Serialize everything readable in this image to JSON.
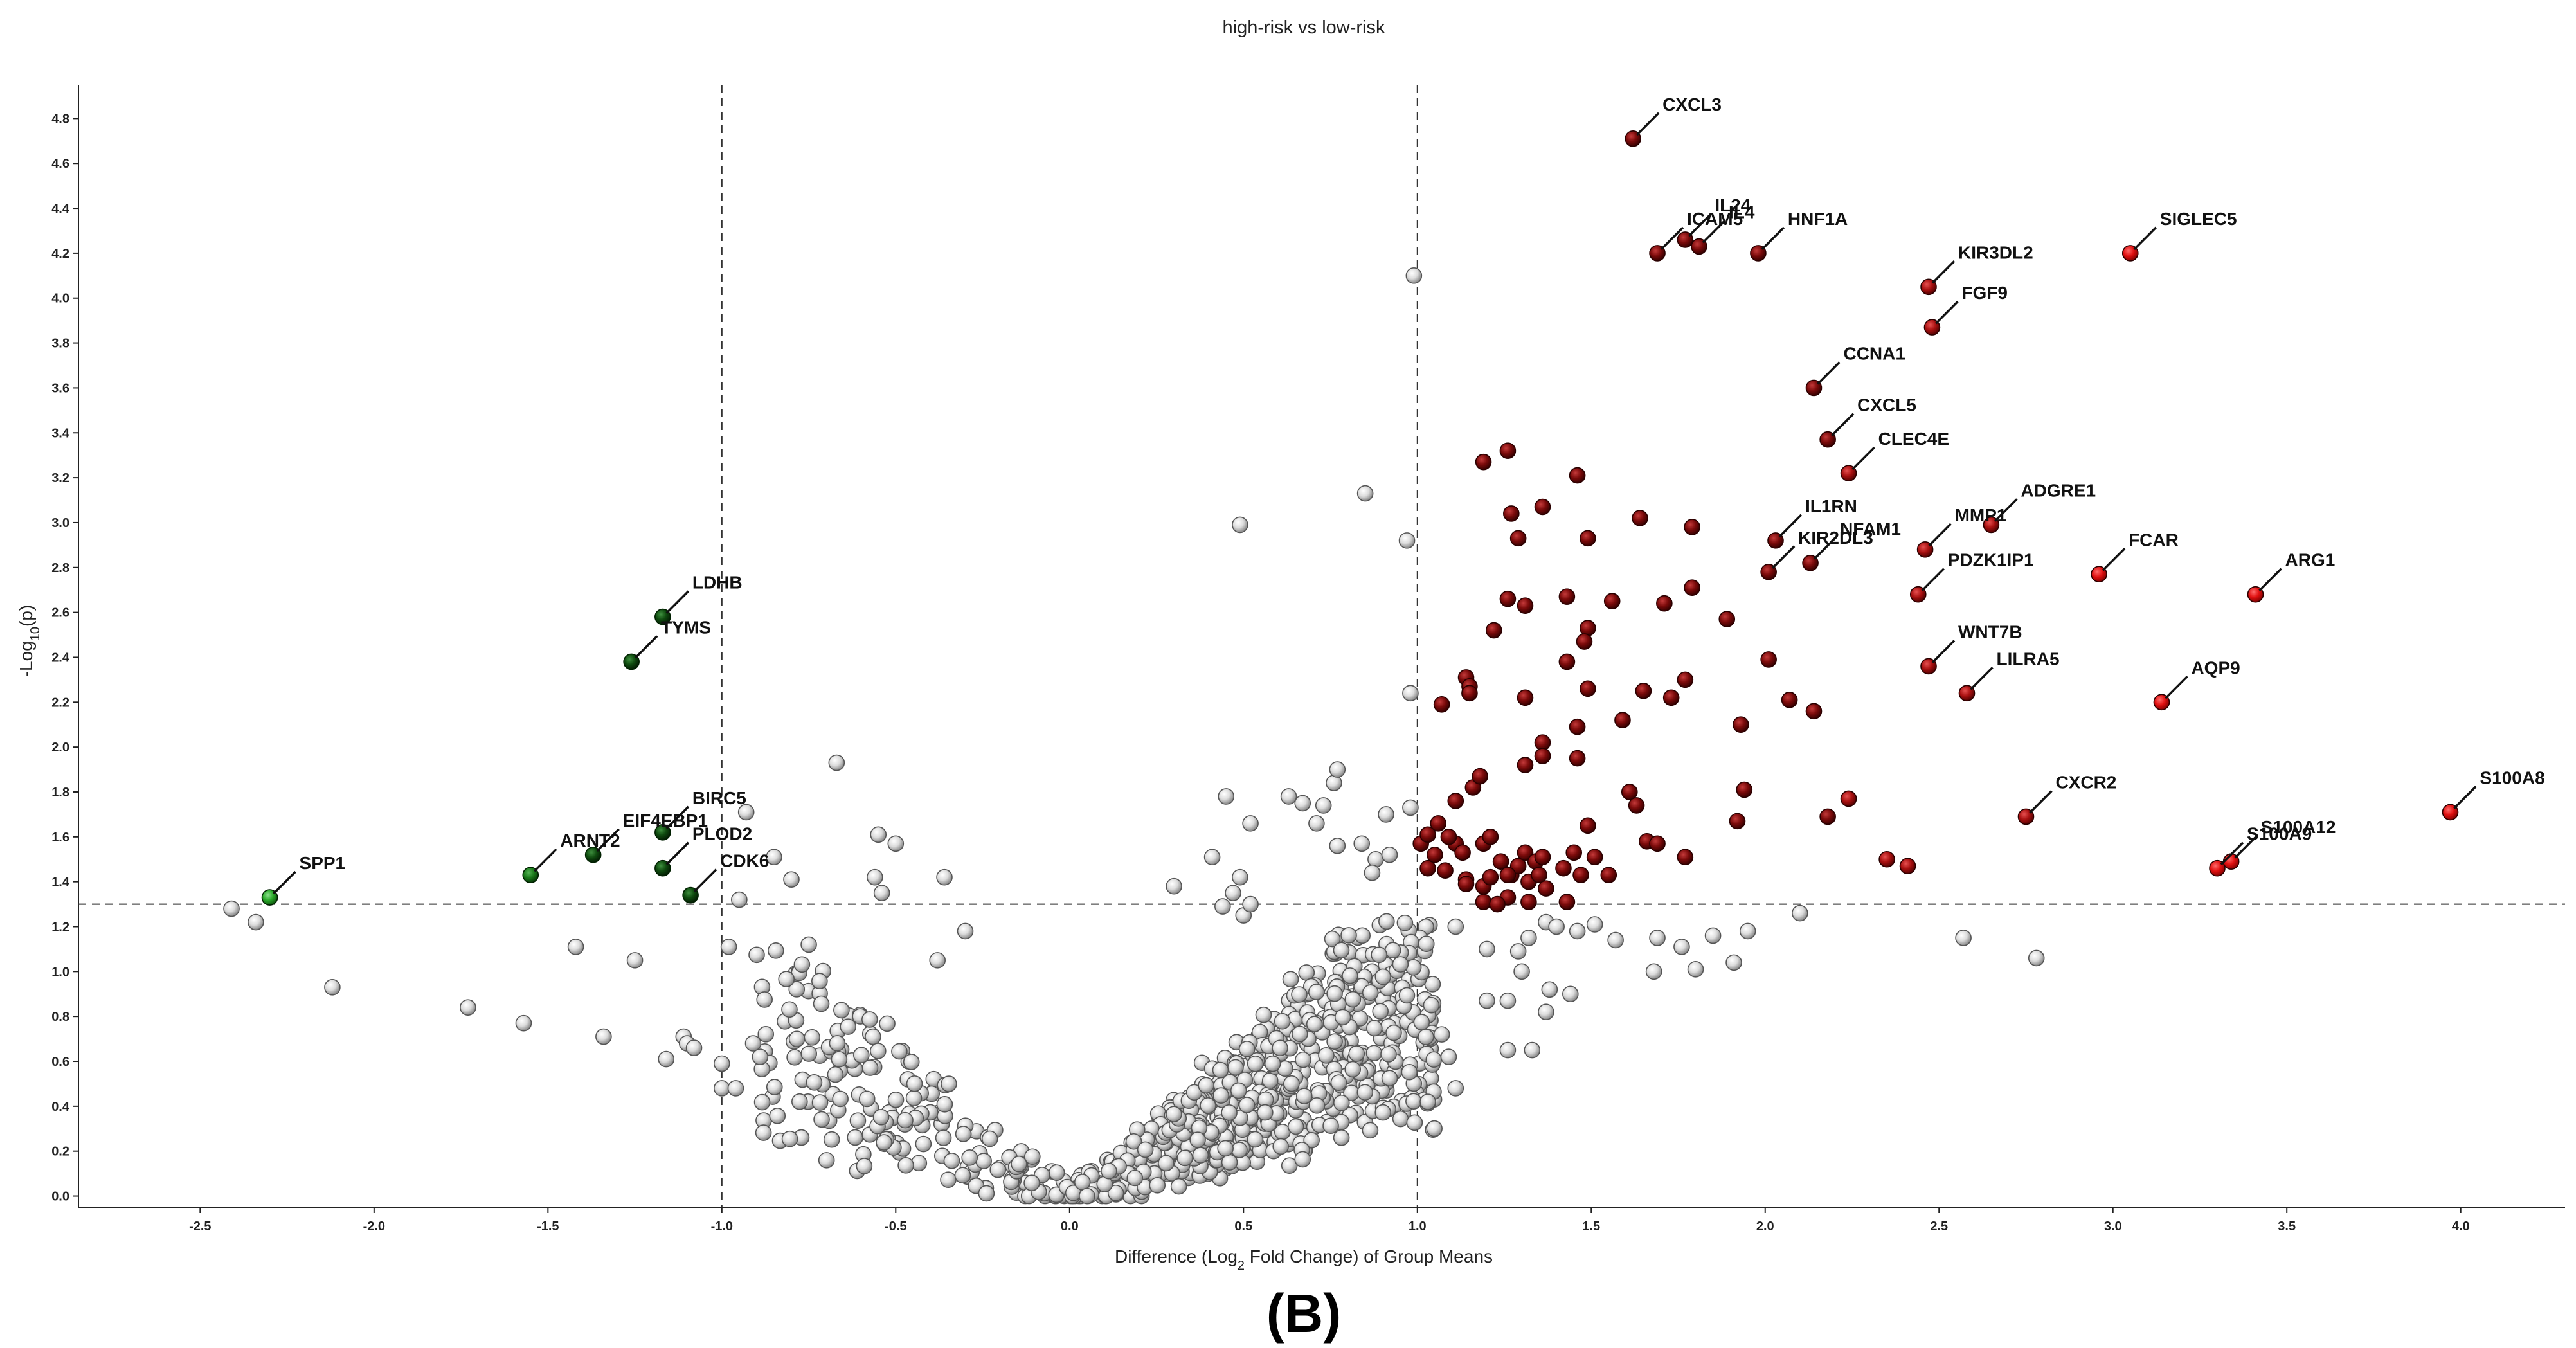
{
  "chart_data": {
    "type": "scatter",
    "title": "high-risk vs low-risk",
    "panel_label": "(B)",
    "xlabel_parts": [
      "Difference (Log",
      "2",
      " Fold Change) of Group Means"
    ],
    "ylabel_parts": [
      "-Log",
      "10",
      "(p)"
    ],
    "xlim": [
      -2.85,
      4.3
    ],
    "ylim": [
      -0.05,
      4.95
    ],
    "x_ticks": [
      -2.5,
      -2.0,
      -1.5,
      -1.0,
      -0.5,
      0.0,
      0.5,
      1.0,
      1.5,
      2.0,
      2.5,
      3.0,
      3.5,
      4.0
    ],
    "x_tick_labels": [
      "-2.5",
      "-2.0",
      "-1.5",
      "-1.0",
      "-0.5",
      "0.0",
      "0.5",
      "1.0",
      "1.5",
      "2.0",
      "2.5",
      "3.0",
      "3.5",
      "4.0"
    ],
    "y_ticks": [
      0.0,
      0.2,
      0.4,
      0.6,
      0.8,
      1.0,
      1.2,
      1.4,
      1.6,
      1.8,
      2.0,
      2.2,
      2.4,
      2.6,
      2.8,
      3.0,
      3.2,
      3.4,
      3.6,
      3.8,
      4.0,
      4.2,
      4.4,
      4.6,
      4.8
    ],
    "y_tick_labels": [
      "0.0",
      "0.2",
      "0.4",
      "0.6",
      "0.8",
      "1.0",
      "1.2",
      "1.4",
      "1.6",
      "1.8",
      "2.0",
      "2.2",
      "2.4",
      "2.6",
      "2.8",
      "3.0",
      "3.2",
      "3.4",
      "3.6",
      "3.8",
      "4.0",
      "4.2",
      "4.4",
      "4.6",
      "4.8"
    ],
    "thresholds": {
      "fold_change_left": -1.0,
      "fold_change_right": 1.0,
      "neg_log10_p": 1.3
    },
    "colors": {
      "up": "#d01010",
      "up_dark": "#5a0000",
      "down": "#1f9a1f",
      "down_dark": "#0b3d0b",
      "ns": "#d8d8d8"
    },
    "up_labeled": [
      {
        "gene": "CXCL3",
        "x": 1.62,
        "y": 4.71
      },
      {
        "gene": "IL24",
        "x": 1.77,
        "y": 4.26
      },
      {
        "gene": "ICAM5",
        "x": 1.69,
        "y": 4.2
      },
      {
        "gene": "IL4",
        "x": 1.81,
        "y": 4.23
      },
      {
        "gene": "HNF1A",
        "x": 1.98,
        "y": 4.2
      },
      {
        "gene": "SIGLEC5",
        "x": 3.05,
        "y": 4.2
      },
      {
        "gene": "KIR3DL2",
        "x": 2.47,
        "y": 4.05
      },
      {
        "gene": "FGF9",
        "x": 2.48,
        "y": 3.87
      },
      {
        "gene": "CCNA1",
        "x": 2.14,
        "y": 3.6
      },
      {
        "gene": "CXCL5",
        "x": 2.18,
        "y": 3.37
      },
      {
        "gene": "CLEC4E",
        "x": 2.24,
        "y": 3.22
      },
      {
        "gene": "ADGRE1",
        "x": 2.65,
        "y": 2.99
      },
      {
        "gene": "IL1RN",
        "x": 2.03,
        "y": 2.92
      },
      {
        "gene": "MMP1",
        "x": 2.46,
        "y": 2.88
      },
      {
        "gene": "NFAM1",
        "x": 2.13,
        "y": 2.82
      },
      {
        "gene": "KIR2DL3",
        "x": 2.01,
        "y": 2.78
      },
      {
        "gene": "FCAR",
        "x": 2.96,
        "y": 2.77
      },
      {
        "gene": "PDZK1IP1",
        "x": 2.44,
        "y": 2.68
      },
      {
        "gene": "ARG1",
        "x": 3.41,
        "y": 2.68
      },
      {
        "gene": "WNT7B",
        "x": 2.47,
        "y": 2.36
      },
      {
        "gene": "LILRA5",
        "x": 2.58,
        "y": 2.24
      },
      {
        "gene": "AQP9",
        "x": 3.14,
        "y": 2.2
      },
      {
        "gene": "CXCR2",
        "x": 2.75,
        "y": 1.69
      },
      {
        "gene": "S100A8",
        "x": 3.97,
        "y": 1.71
      },
      {
        "gene": "S100A12",
        "x": 3.34,
        "y": 1.49
      },
      {
        "gene": "S100A9",
        "x": 3.3,
        "y": 1.46
      }
    ],
    "down_labeled": [
      {
        "gene": "LDHB",
        "x": -1.17,
        "y": 2.58
      },
      {
        "gene": "TYMS",
        "x": -1.26,
        "y": 2.38
      },
      {
        "gene": "BIRC5",
        "x": -1.17,
        "y": 1.62
      },
      {
        "gene": "EIF4EBP1",
        "x": -1.37,
        "y": 1.52
      },
      {
        "gene": "PLOD2",
        "x": -1.17,
        "y": 1.46
      },
      {
        "gene": "ARNT2",
        "x": -1.55,
        "y": 1.43
      },
      {
        "gene": "CDK6",
        "x": -1.09,
        "y": 1.34
      },
      {
        "gene": "SPP1",
        "x": -2.3,
        "y": 1.33
      }
    ],
    "up_unlabeled": [
      [
        1.19,
        3.27
      ],
      [
        1.26,
        3.32
      ],
      [
        1.27,
        3.04
      ],
      [
        1.29,
        2.93
      ],
      [
        1.36,
        3.07
      ],
      [
        1.46,
        3.21
      ],
      [
        1.49,
        2.93
      ],
      [
        1.64,
        3.02
      ],
      [
        1.79,
        2.98
      ],
      [
        1.22,
        2.52
      ],
      [
        1.26,
        2.66
      ],
      [
        1.31,
        2.63
      ],
      [
        1.43,
        2.67
      ],
      [
        1.49,
        2.53
      ],
      [
        1.48,
        2.47
      ],
      [
        1.56,
        2.65
      ],
      [
        1.71,
        2.64
      ],
      [
        1.79,
        2.71
      ],
      [
        1.89,
        2.57
      ],
      [
        1.14,
        2.31
      ],
      [
        1.15,
        2.27
      ],
      [
        1.15,
        2.24
      ],
      [
        1.07,
        2.19
      ],
      [
        1.31,
        2.22
      ],
      [
        1.43,
        2.38
      ],
      [
        1.49,
        2.26
      ],
      [
        1.65,
        2.25
      ],
      [
        1.73,
        2.22
      ],
      [
        1.77,
        2.3
      ],
      [
        1.36,
        2.02
      ],
      [
        1.46,
        2.09
      ],
      [
        1.59,
        2.12
      ],
      [
        1.93,
        2.1
      ],
      [
        2.01,
        2.39
      ],
      [
        2.07,
        2.21
      ],
      [
        2.14,
        2.16
      ],
      [
        1.16,
        1.82
      ],
      [
        1.18,
        1.87
      ],
      [
        1.11,
        1.76
      ],
      [
        1.31,
        1.92
      ],
      [
        1.36,
        1.96
      ],
      [
        1.46,
        1.95
      ],
      [
        1.61,
        1.8
      ],
      [
        1.63,
        1.74
      ],
      [
        1.94,
        1.81
      ],
      [
        2.24,
        1.77
      ],
      [
        1.06,
        1.66
      ],
      [
        1.11,
        1.57
      ],
      [
        1.13,
        1.53
      ],
      [
        1.19,
        1.57
      ],
      [
        1.21,
        1.6
      ],
      [
        1.24,
        1.49
      ],
      [
        1.27,
        1.43
      ],
      [
        1.29,
        1.47
      ],
      [
        1.31,
        1.53
      ],
      [
        1.34,
        1.49
      ],
      [
        1.36,
        1.51
      ],
      [
        1.42,
        1.46
      ],
      [
        1.45,
        1.53
      ],
      [
        1.49,
        1.65
      ],
      [
        1.51,
        1.51
      ],
      [
        1.66,
        1.58
      ],
      [
        1.69,
        1.57
      ],
      [
        1.77,
        1.51
      ],
      [
        1.92,
        1.67
      ],
      [
        2.18,
        1.69
      ],
      [
        1.08,
        1.45
      ],
      [
        1.14,
        1.41
      ],
      [
        1.19,
        1.38
      ],
      [
        1.21,
        1.42
      ],
      [
        1.26,
        1.33
      ],
      [
        1.32,
        1.4
      ],
      [
        1.35,
        1.43
      ],
      [
        1.37,
        1.37
      ],
      [
        1.43,
        1.31
      ],
      [
        1.47,
        1.43
      ],
      [
        1.55,
        1.43
      ],
      [
        2.35,
        1.5
      ],
      [
        2.41,
        1.47
      ],
      [
        1.01,
        1.57
      ],
      [
        1.03,
        1.46
      ],
      [
        1.05,
        1.52
      ],
      [
        1.14,
        1.39
      ],
      [
        1.19,
        1.31
      ],
      [
        1.26,
        1.43
      ],
      [
        1.32,
        1.31
      ],
      [
        1.23,
        1.3
      ],
      [
        1.03,
        1.61
      ],
      [
        1.09,
        1.6
      ]
    ],
    "down_unlabeled": [],
    "ns_points": [
      [
        -2.41,
        1.28
      ],
      [
        -2.34,
        1.22
      ],
      [
        -2.12,
        0.93
      ],
      [
        -1.73,
        0.84
      ],
      [
        -1.57,
        0.77
      ],
      [
        -1.42,
        1.11
      ],
      [
        -1.34,
        0.71
      ],
      [
        -1.25,
        1.05
      ],
      [
        -1.16,
        0.61
      ],
      [
        -1.11,
        0.71
      ],
      [
        -1.1,
        0.68
      ],
      [
        -1.08,
        0.66
      ],
      [
        -1.0,
        0.59
      ],
      [
        -1.0,
        0.48
      ],
      [
        -0.98,
        1.11
      ],
      [
        -0.96,
        0.48
      ],
      [
        -0.95,
        1.32
      ],
      [
        -0.93,
        1.71
      ],
      [
        -0.91,
        0.68
      ],
      [
        -0.89,
        0.62
      ],
      [
        -0.85,
        1.51
      ],
      [
        -0.8,
        1.41
      ],
      [
        -0.75,
        1.12
      ],
      [
        -0.67,
        1.93
      ],
      [
        -0.55,
        1.61
      ],
      [
        -0.5,
        1.57
      ],
      [
        -0.56,
        1.42
      ],
      [
        -0.54,
        1.35
      ],
      [
        -0.36,
        1.42
      ],
      [
        -0.38,
        1.05
      ],
      [
        -0.3,
        1.18
      ],
      [
        0.3,
        1.38
      ],
      [
        0.41,
        1.51
      ],
      [
        0.47,
        1.35
      ],
      [
        0.49,
        1.42
      ],
      [
        0.44,
        1.29
      ],
      [
        0.5,
        1.25
      ],
      [
        0.52,
        1.3
      ],
      [
        0.45,
        1.78
      ],
      [
        0.52,
        1.66
      ],
      [
        0.49,
        2.99
      ],
      [
        0.63,
        1.78
      ],
      [
        0.67,
        1.75
      ],
      [
        0.71,
        1.66
      ],
      [
        0.76,
        1.84
      ],
      [
        0.77,
        1.9
      ],
      [
        0.73,
        1.74
      ],
      [
        0.77,
        1.56
      ],
      [
        0.84,
        1.57
      ],
      [
        0.91,
        1.7
      ],
      [
        0.88,
        1.5
      ],
      [
        0.87,
        1.44
      ],
      [
        0.92,
        1.52
      ],
      [
        0.85,
        3.13
      ],
      [
        0.97,
        2.92
      ],
      [
        0.98,
        2.24
      ],
      [
        0.98,
        1.73
      ],
      [
        0.99,
        4.1
      ],
      [
        1.11,
        1.2
      ],
      [
        1.2,
        1.1
      ],
      [
        1.29,
        1.09
      ],
      [
        1.32,
        1.15
      ],
      [
        1.37,
        1.22
      ],
      [
        1.4,
        1.2
      ],
      [
        1.46,
        1.18
      ],
      [
        1.51,
        1.21
      ],
      [
        1.57,
        1.14
      ],
      [
        1.69,
        1.15
      ],
      [
        1.76,
        1.11
      ],
      [
        1.85,
        1.16
      ],
      [
        1.91,
        1.04
      ],
      [
        1.95,
        1.18
      ],
      [
        1.68,
        1.0
      ],
      [
        1.8,
        1.01
      ],
      [
        1.3,
        1.0
      ],
      [
        1.38,
        0.92
      ],
      [
        1.44,
        0.9
      ],
      [
        1.37,
        0.82
      ],
      [
        1.26,
        0.65
      ],
      [
        1.33,
        0.65
      ],
      [
        1.2,
        0.87
      ],
      [
        1.26,
        0.87
      ],
      [
        1.09,
        0.62
      ],
      [
        1.11,
        0.48
      ],
      [
        1.07,
        0.72
      ],
      [
        1.04,
        0.85
      ],
      [
        2.1,
        1.26
      ],
      [
        2.57,
        1.15
      ],
      [
        2.78,
        1.06
      ]
    ],
    "ns_bulk_count": 820
  }
}
